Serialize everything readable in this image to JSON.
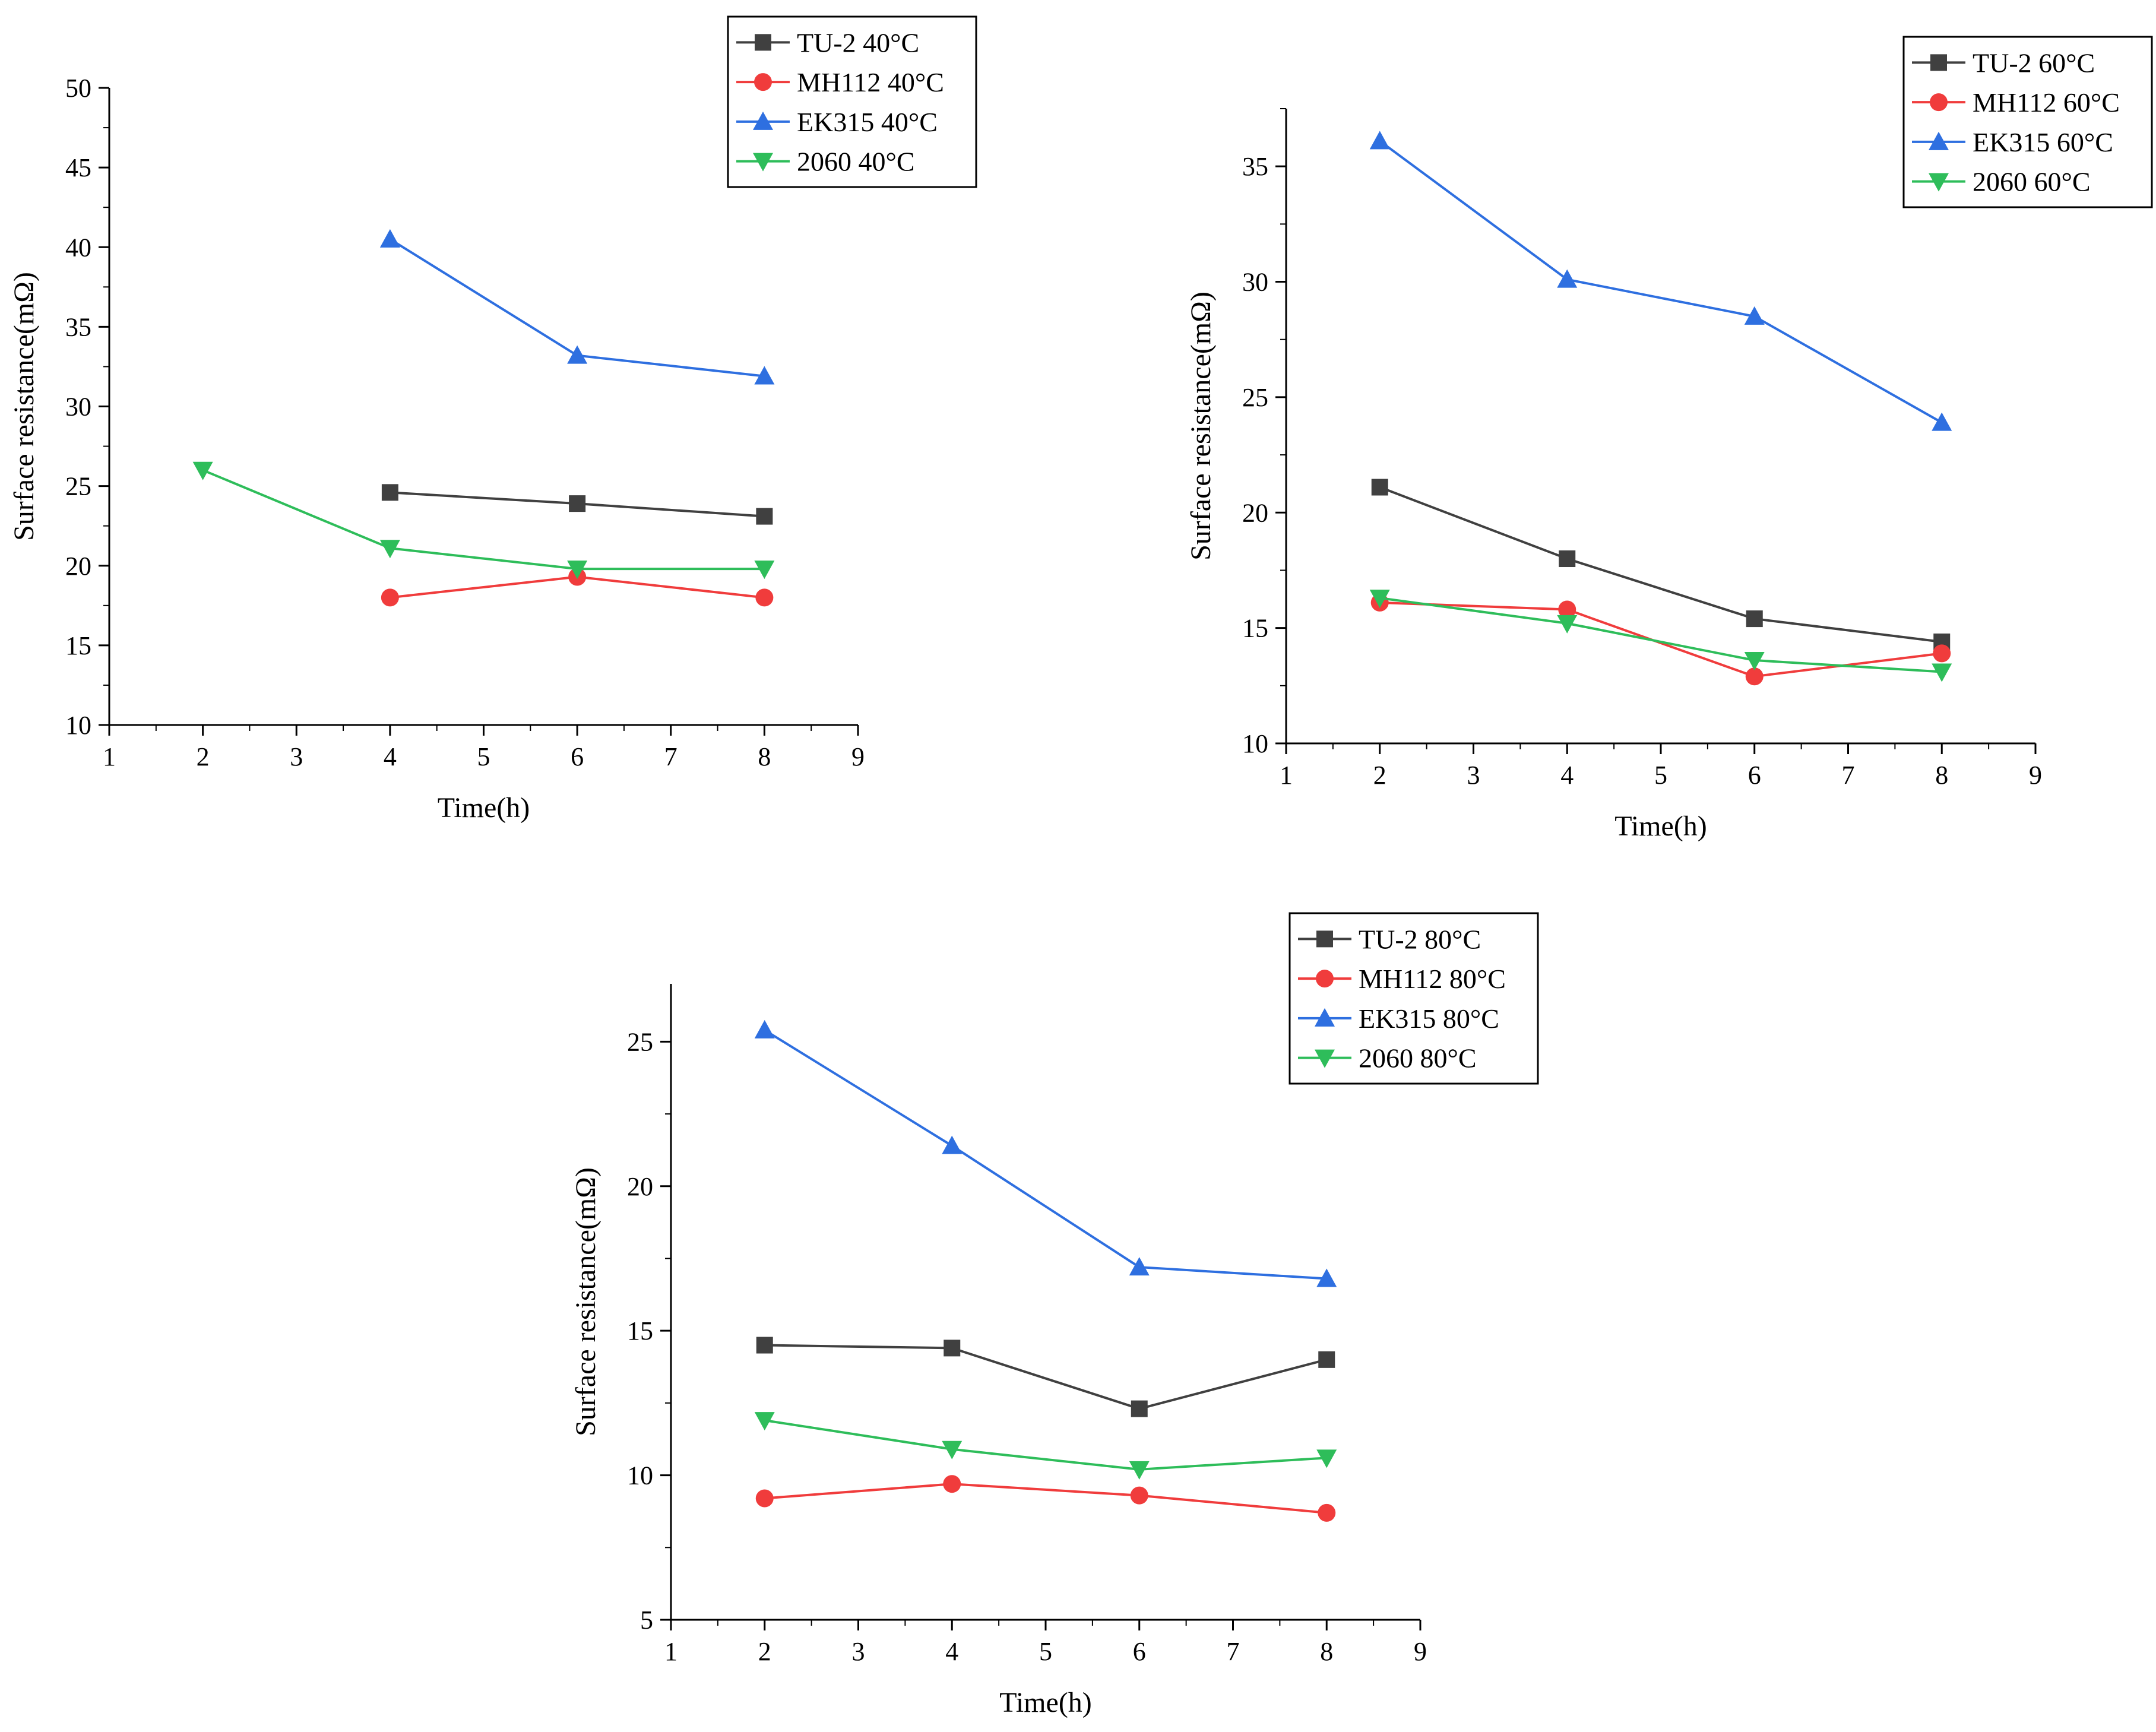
{
  "chart_data": [
    {
      "type": "line",
      "title": "",
      "xlabel": "Time(h)",
      "ylabel": "Surface resistance(mΩ)",
      "xlim": [
        1,
        9
      ],
      "ylim": [
        10,
        50
      ],
      "xticks": [
        "1",
        "2",
        "3",
        "4",
        "5",
        "6",
        "7",
        "8",
        "9"
      ],
      "yticks": [
        "10",
        "15",
        "20",
        "25",
        "30",
        "35",
        "40",
        "45",
        "50"
      ],
      "legend_position": "top-right",
      "series": [
        {
          "name": "TU-2 40°C",
          "color": "#404040",
          "marker": "square",
          "x": [
            4,
            6,
            8
          ],
          "values": [
            24.6,
            23.9,
            23.1
          ]
        },
        {
          "name": "MH112 40°C",
          "color": "#f03c3c",
          "marker": "circle",
          "x": [
            4,
            6,
            8
          ],
          "values": [
            18.0,
            19.3,
            18.0
          ]
        },
        {
          "name": "EK315 40°C",
          "color": "#2e6fe0",
          "marker": "triangle-up",
          "x": [
            4,
            6,
            8
          ],
          "values": [
            40.5,
            33.2,
            31.9
          ]
        },
        {
          "name": "2060 40°C",
          "color": "#2ebd5a",
          "marker": "triangle-down",
          "x": [
            2,
            4,
            6,
            8
          ],
          "values": [
            26.0,
            21.1,
            19.8,
            19.8
          ]
        }
      ]
    },
    {
      "type": "line",
      "title": "",
      "xlabel": "Time(h)",
      "ylabel": "Surface resistance(mΩ)",
      "xlim": [
        1,
        9
      ],
      "ylim": [
        10,
        37.5
      ],
      "xticks": [
        "1",
        "2",
        "3",
        "4",
        "5",
        "6",
        "7",
        "8",
        "9"
      ],
      "yticks": [
        "10",
        "15",
        "20",
        "25",
        "30",
        "35"
      ],
      "legend_position": "top-right",
      "series": [
        {
          "name": "TU-2 60°C",
          "color": "#404040",
          "marker": "square",
          "x": [
            2,
            4,
            6,
            8
          ],
          "values": [
            21.1,
            18.0,
            15.4,
            14.4
          ]
        },
        {
          "name": "MH112 60°C",
          "color": "#f03c3c",
          "marker": "circle",
          "x": [
            2,
            4,
            6,
            8
          ],
          "values": [
            16.1,
            15.8,
            12.9,
            13.9
          ]
        },
        {
          "name": "EK315 60°C",
          "color": "#2e6fe0",
          "marker": "triangle-up",
          "x": [
            2,
            4,
            6,
            8
          ],
          "values": [
            36.1,
            30.1,
            28.5,
            23.9
          ]
        },
        {
          "name": "2060 60°C",
          "color": "#2ebd5a",
          "marker": "triangle-down",
          "x": [
            2,
            4,
            6,
            8
          ],
          "values": [
            16.3,
            15.2,
            13.6,
            13.1
          ]
        }
      ]
    },
    {
      "type": "line",
      "title": "",
      "xlabel": "Time(h)",
      "ylabel": "Surface resistance(mΩ)",
      "xlim": [
        1,
        9
      ],
      "ylim": [
        5,
        27
      ],
      "xticks": [
        "1",
        "2",
        "3",
        "4",
        "5",
        "6",
        "7",
        "8",
        "9"
      ],
      "yticks": [
        "5",
        "10",
        "15",
        "20",
        "25"
      ],
      "legend_position": "top-right",
      "series": [
        {
          "name": "TU-2 80°C",
          "color": "#404040",
          "marker": "square",
          "x": [
            2,
            4,
            6,
            8
          ],
          "values": [
            14.5,
            14.4,
            12.3,
            14.0
          ]
        },
        {
          "name": "MH112 80°C",
          "color": "#f03c3c",
          "marker": "circle",
          "x": [
            2,
            4,
            6,
            8
          ],
          "values": [
            9.2,
            9.7,
            9.3,
            8.7
          ]
        },
        {
          "name": "EK315 80°C",
          "color": "#2e6fe0",
          "marker": "triangle-up",
          "x": [
            2,
            4,
            6,
            8
          ],
          "values": [
            25.4,
            21.4,
            17.2,
            16.8
          ]
        },
        {
          "name": "2060 80°C",
          "color": "#2ebd5a",
          "marker": "triangle-down",
          "x": [
            2,
            4,
            6,
            8
          ],
          "values": [
            11.9,
            10.9,
            10.2,
            10.6
          ]
        }
      ]
    }
  ]
}
